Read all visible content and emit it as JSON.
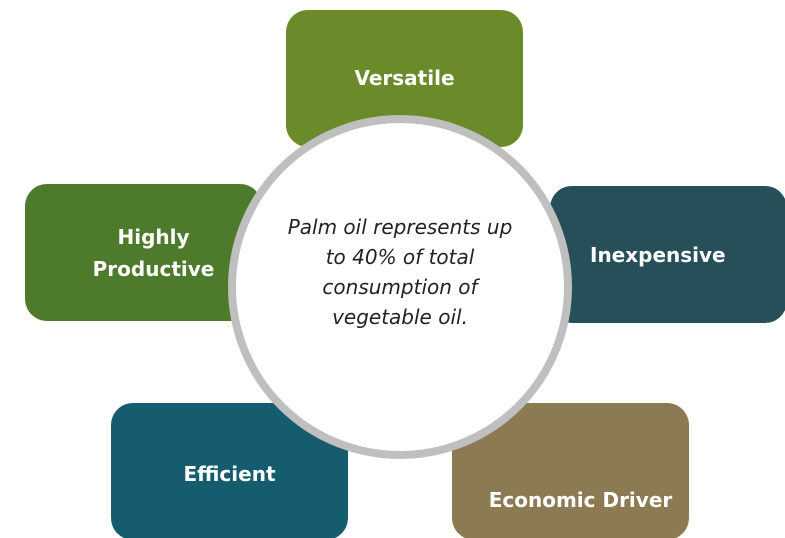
{
  "center": {
    "text": "Palm oil represents up to 40% of total consumption of vegetable oil."
  },
  "nodes": [
    {
      "label": "Versatile"
    },
    {
      "label": "Inexpensive"
    },
    {
      "label": "Economic Driver"
    },
    {
      "label": "Efficient"
    },
    {
      "label": "Highly Productive"
    }
  ]
}
